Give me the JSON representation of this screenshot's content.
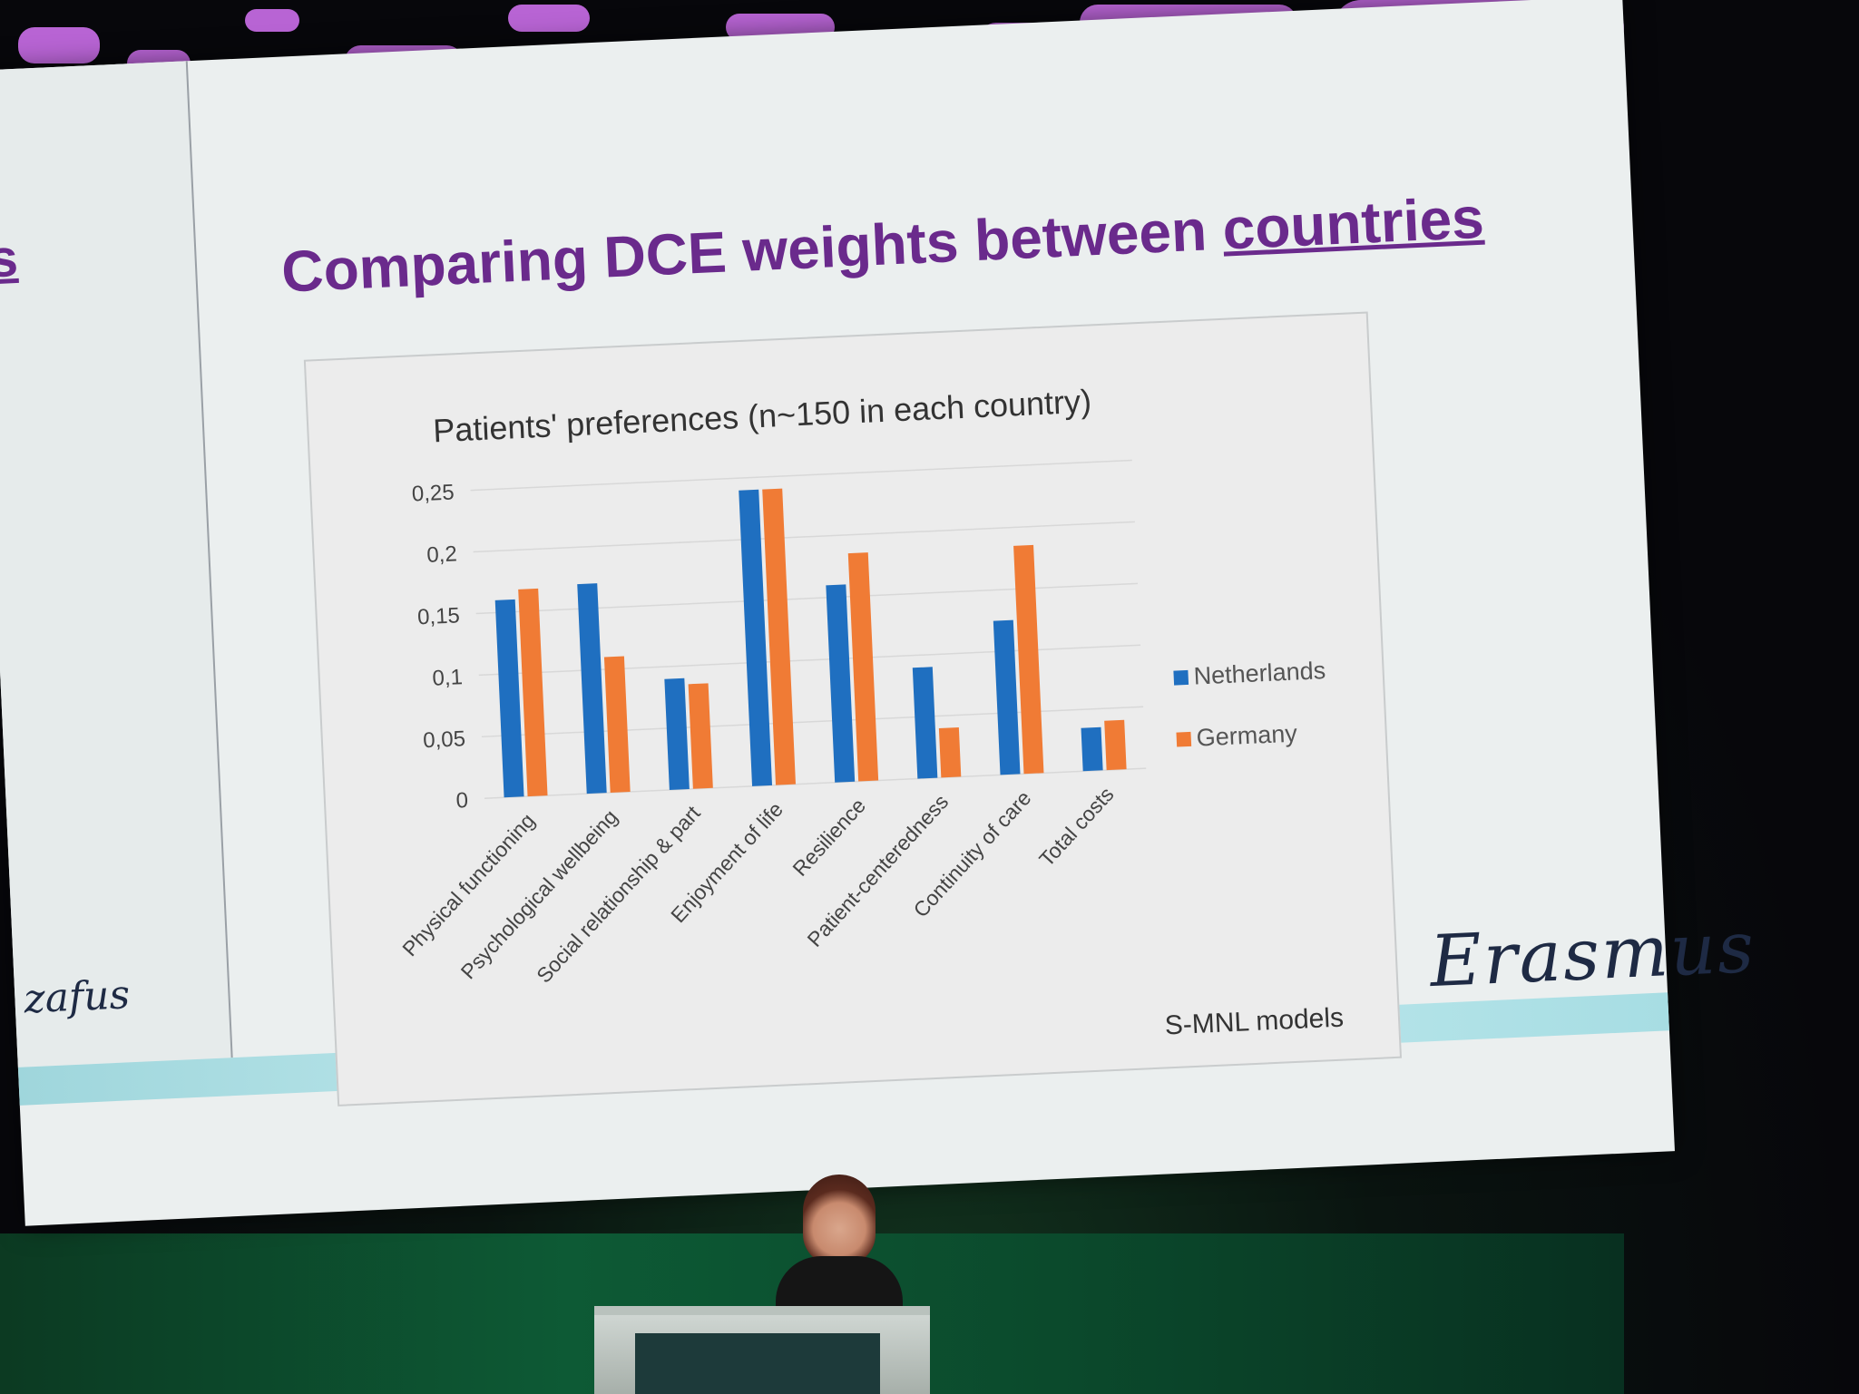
{
  "slide": {
    "title_main": "Comparing DCE weights between ",
    "title_emph": "countries",
    "left_panel_fragment": "s",
    "logo_text": "Erasmus",
    "left_logo_text": "zafus",
    "model_note": "S-MNL models"
  },
  "colors": {
    "netherlands": "#1f6fc0",
    "germany": "#f07b35",
    "title": "#6a2a8c",
    "gridline": "#d8d8d8"
  },
  "chart_data": {
    "type": "bar",
    "title": "Patients' preferences (n~150 in each country)",
    "xlabel": "",
    "ylabel": "",
    "categories": [
      "Physical functioning",
      "Psychological wellbeing",
      "Social relationship & part",
      "Enjoyment of life",
      "Resilience",
      "Patient-centeredness",
      "Continuity of care",
      "Total costs"
    ],
    "series": [
      {
        "name": "Netherlands",
        "values": [
          0.16,
          0.17,
          0.09,
          0.24,
          0.16,
          0.09,
          0.125,
          0.035
        ]
      },
      {
        "name": "Germany",
        "values": [
          0.168,
          0.11,
          0.085,
          0.24,
          0.185,
          0.04,
          0.185,
          0.04
        ]
      }
    ],
    "yticks": [
      "0",
      "0,05",
      "0,1",
      "0,15",
      "0,2",
      "0,25"
    ],
    "ylim": [
      0,
      0.25
    ],
    "grid": true,
    "legend_position": "right"
  }
}
